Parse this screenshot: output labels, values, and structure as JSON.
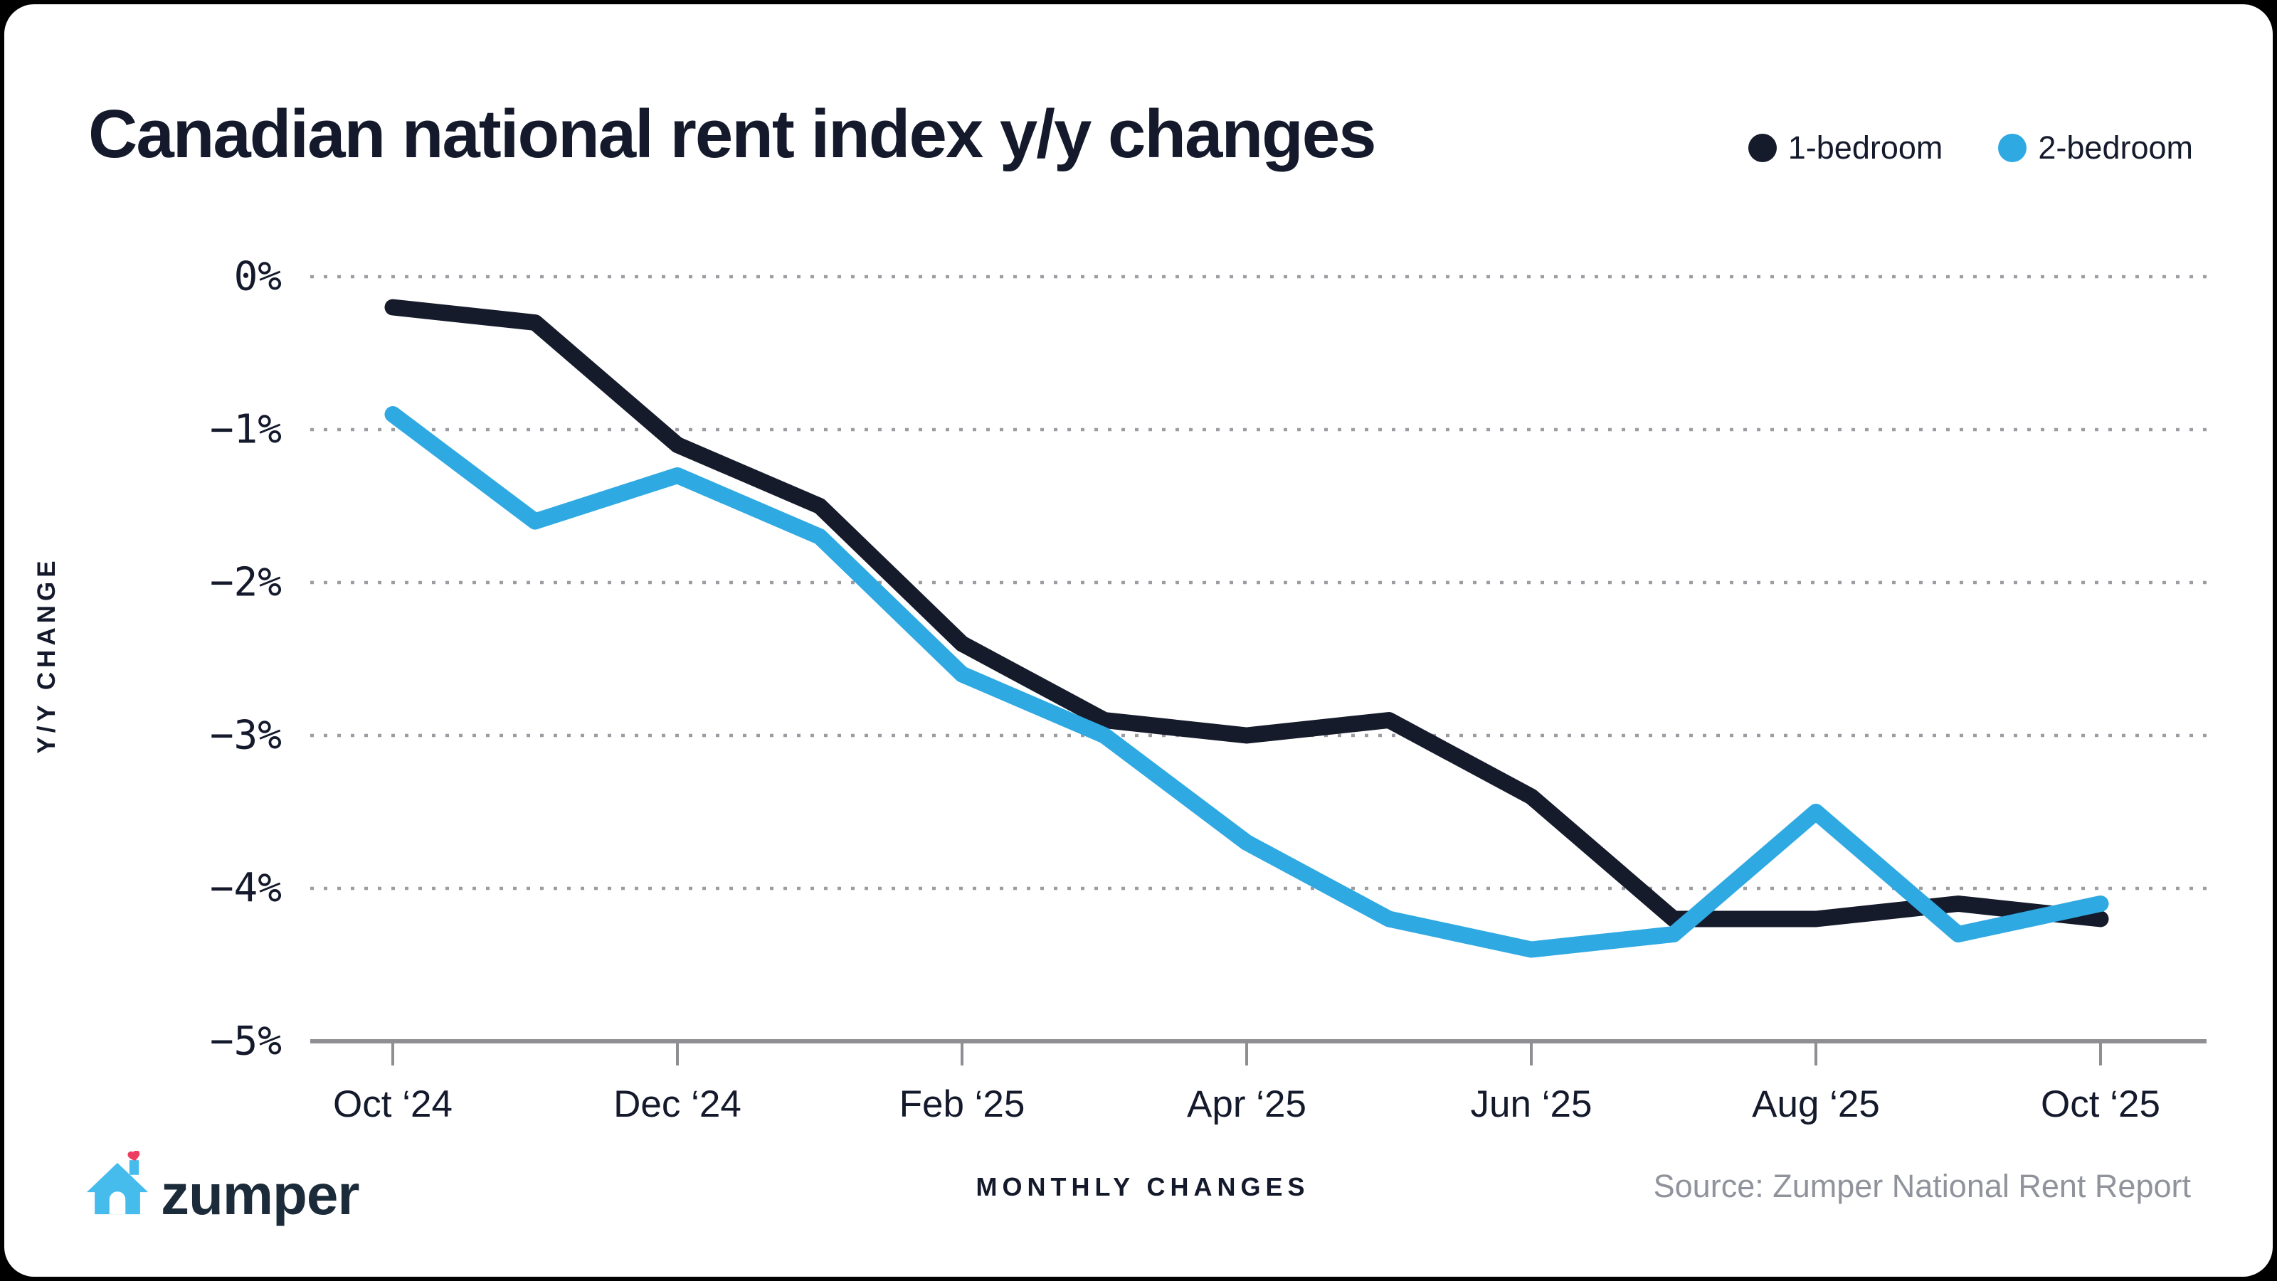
{
  "page": {
    "title": "Canadian national rent index y/y changes"
  },
  "legend": {
    "items": [
      {
        "label": "1-bedroom",
        "color": "#151B2B"
      },
      {
        "label": "2-bedroom",
        "color": "#2FA9E2"
      }
    ]
  },
  "axes": {
    "y_label": "Y/Y CHANGE",
    "x_label": "MONTHLY CHANGES"
  },
  "footer": {
    "brand": "zumper",
    "source": "Source: Zumper National Rent Report"
  },
  "chart_data": {
    "type": "line",
    "title": "Canadian national rent index y/y changes",
    "x": [
      "Oct ‘24",
      "Nov ‘24",
      "Dec ‘24",
      "Jan ‘25",
      "Feb ‘25",
      "Mar ‘25",
      "Apr ‘25",
      "May ‘25",
      "Jun ‘25",
      "Jul ‘25",
      "Aug ‘25",
      "Sep ‘25",
      "Oct ‘25"
    ],
    "x_tick_indices": [
      0,
      2,
      4,
      6,
      8,
      10,
      12
    ],
    "x_tick_labels": [
      "Oct ‘24",
      "Dec ‘24",
      "Feb ‘25",
      "Apr ‘25",
      "Jun ‘25",
      "Aug ‘25",
      "Oct ‘25"
    ],
    "y_tick_labels": [
      "0%",
      "−1%",
      "−2%",
      "−3%",
      "−4%",
      "−5%"
    ],
    "y_tick_values": [
      0,
      -1,
      -2,
      -3,
      -4,
      -5
    ],
    "ylim": [
      -5,
      0
    ],
    "ylabel": "Y/Y CHANGE",
    "xlabel": "MONTHLY CHANGES",
    "grid": "horizontal-dotted-at-0-to-minus4",
    "legend_position": "top-right",
    "series": [
      {
        "name": "1-bedroom",
        "color": "#151B2B",
        "values": [
          -0.2,
          -0.3,
          -1.1,
          -1.5,
          -2.4,
          -2.9,
          -3.0,
          -2.9,
          -3.4,
          -4.2,
          -4.2,
          -4.1,
          -4.2
        ]
      },
      {
        "name": "2-bedroom",
        "color": "#2FA9E2",
        "values": [
          -0.9,
          -1.6,
          -1.3,
          -1.7,
          -2.6,
          -3.0,
          -3.7,
          -4.2,
          -4.4,
          -4.3,
          -3.5,
          -4.3,
          -4.1
        ]
      }
    ],
    "source": "Source: Zumper National Rent Report",
    "colors": {
      "grid": "#9C9CA2",
      "axis": "#8E8E93",
      "ink": "#141A2C"
    }
  },
  "logo": {
    "house_color": "#45BCEC",
    "heart_color": "#EE3E5F"
  }
}
